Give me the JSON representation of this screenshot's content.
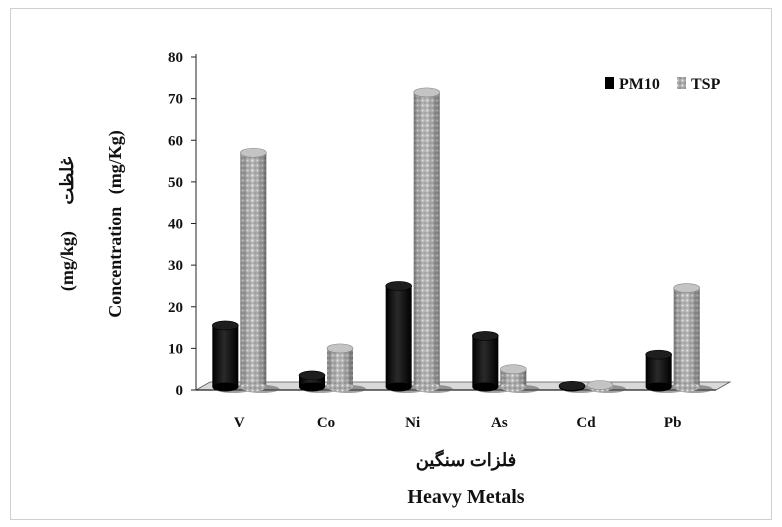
{
  "chart_data": {
    "type": "bar",
    "categories": [
      "V",
      "Co",
      "Ni",
      "As",
      "Cd",
      "Pb"
    ],
    "series": [
      {
        "name": "PM10",
        "values": [
          15.5,
          3.5,
          25,
          13,
          1,
          8.5
        ],
        "color": "#000000"
      },
      {
        "name": "TSP",
        "values": [
          57,
          10,
          71.5,
          5,
          1.2,
          24.5
        ],
        "color": "#9a9a9a"
      }
    ],
    "title": "",
    "xlabel_fa": "فلزات سنگین",
    "xlabel": "Heavy Metals",
    "ylabel_fa": "غلظت",
    "ylabel_unit_fa": "(mg/kg)",
    "ylabel": "Concentration",
    "ylabel_unit": "(mg/Kg)",
    "ylim": [
      0,
      80
    ],
    "yticks": [
      0,
      10,
      20,
      30,
      40,
      50,
      60,
      70,
      80
    ],
    "grid": false,
    "legend_position": "top-right",
    "style": "3d-cylinder"
  }
}
